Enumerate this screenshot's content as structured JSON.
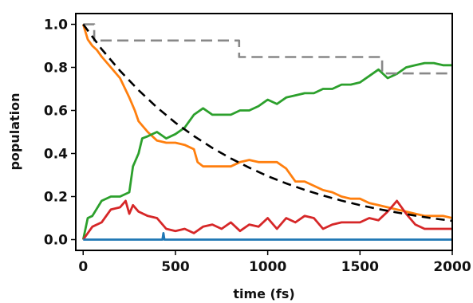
{
  "chart_data": {
    "type": "line",
    "xlabel": "time (fs)",
    "ylabel": "population",
    "xlim": [
      -40,
      2000
    ],
    "ylim": [
      -0.05,
      1.05
    ],
    "xticks": [
      0,
      500,
      1000,
      1500,
      2000
    ],
    "xtick_labels": [
      "0",
      "500",
      "1000",
      "1500",
      "2000"
    ],
    "yticks": [
      0.0,
      0.2,
      0.4,
      0.6,
      0.8,
      1.0
    ],
    "ytick_labels": [
      "0.0",
      "0.2",
      "0.4",
      "0.6",
      "0.8",
      "1.0"
    ],
    "grid": false,
    "legend": false,
    "series": [
      {
        "color": "#ff7f0e",
        "style": "solid",
        "kind": "line",
        "x": [
          0,
          25,
          50,
          75,
          100,
          150,
          200,
          250,
          280,
          300,
          350,
          400,
          450,
          500,
          550,
          600,
          620,
          650,
          700,
          800,
          850,
          900,
          950,
          1000,
          1050,
          1100,
          1150,
          1200,
          1250,
          1300,
          1350,
          1400,
          1450,
          1500,
          1550,
          1600,
          1650,
          1700,
          1750,
          1800,
          1850,
          1900,
          1950,
          2000
        ],
        "y": [
          1.0,
          0.93,
          0.9,
          0.88,
          0.85,
          0.8,
          0.75,
          0.66,
          0.6,
          0.55,
          0.5,
          0.46,
          0.45,
          0.45,
          0.44,
          0.42,
          0.36,
          0.34,
          0.34,
          0.34,
          0.36,
          0.37,
          0.36,
          0.36,
          0.36,
          0.33,
          0.27,
          0.27,
          0.25,
          0.23,
          0.22,
          0.2,
          0.19,
          0.19,
          0.17,
          0.16,
          0.15,
          0.14,
          0.13,
          0.12,
          0.11,
          0.11,
          0.11,
          0.1
        ]
      },
      {
        "color": "#2ca02c",
        "style": "solid",
        "kind": "line",
        "x": [
          0,
          25,
          50,
          100,
          150,
          200,
          250,
          270,
          300,
          320,
          350,
          400,
          450,
          500,
          550,
          600,
          650,
          700,
          800,
          850,
          900,
          950,
          1000,
          1050,
          1100,
          1150,
          1200,
          1250,
          1300,
          1350,
          1400,
          1450,
          1500,
          1550,
          1600,
          1650,
          1700,
          1750,
          1800,
          1850,
          1900,
          1950,
          2000
        ],
        "y": [
          0.0,
          0.1,
          0.11,
          0.18,
          0.2,
          0.2,
          0.22,
          0.34,
          0.4,
          0.47,
          0.48,
          0.5,
          0.47,
          0.49,
          0.52,
          0.58,
          0.61,
          0.58,
          0.58,
          0.6,
          0.6,
          0.62,
          0.65,
          0.63,
          0.66,
          0.67,
          0.68,
          0.68,
          0.7,
          0.7,
          0.72,
          0.72,
          0.73,
          0.76,
          0.79,
          0.75,
          0.77,
          0.8,
          0.81,
          0.82,
          0.82,
          0.81,
          0.81
        ]
      },
      {
        "color": "#d62728",
        "style": "solid",
        "kind": "line",
        "x": [
          0,
          50,
          100,
          150,
          200,
          230,
          250,
          270,
          300,
          350,
          400,
          450,
          500,
          550,
          600,
          650,
          700,
          750,
          800,
          850,
          900,
          950,
          1000,
          1050,
          1100,
          1150,
          1200,
          1250,
          1300,
          1350,
          1400,
          1450,
          1500,
          1550,
          1600,
          1650,
          1700,
          1750,
          1800,
          1850,
          1900,
          1950,
          2000
        ],
        "y": [
          0.0,
          0.06,
          0.08,
          0.14,
          0.15,
          0.18,
          0.12,
          0.16,
          0.13,
          0.11,
          0.1,
          0.05,
          0.04,
          0.05,
          0.03,
          0.06,
          0.07,
          0.05,
          0.08,
          0.04,
          0.07,
          0.06,
          0.1,
          0.05,
          0.1,
          0.08,
          0.11,
          0.1,
          0.05,
          0.07,
          0.08,
          0.08,
          0.08,
          0.1,
          0.09,
          0.13,
          0.18,
          0.12,
          0.07,
          0.05,
          0.05,
          0.05,
          0.05
        ]
      },
      {
        "color": "#1f77b4",
        "style": "solid",
        "kind": "line",
        "x": [
          0,
          430,
          435,
          440,
          450,
          2000
        ],
        "y": [
          0.0,
          0.0,
          0.03,
          0.0,
          0.0,
          0.0
        ]
      },
      {
        "color": "#888888",
        "style": "dashed",
        "kind": "step",
        "x": [
          0,
          60,
          60,
          845,
          845,
          1620,
          1620,
          2000
        ],
        "y": [
          1.0,
          1.0,
          0.925,
          0.925,
          0.848,
          0.848,
          0.772,
          0.772
        ]
      },
      {
        "color": "#000000",
        "style": "dashed",
        "kind": "curve",
        "function": "exp(-t/820)",
        "x": [
          0,
          100,
          200,
          300,
          400,
          500,
          600,
          700,
          800,
          900,
          1000,
          1100,
          1200,
          1300,
          1400,
          1500,
          1600,
          1700,
          1800,
          1900,
          2000
        ],
        "y": [
          1.0,
          0.885,
          0.784,
          0.694,
          0.614,
          0.543,
          0.481,
          0.426,
          0.377,
          0.334,
          0.295,
          0.261,
          0.231,
          0.205,
          0.181,
          0.16,
          0.142,
          0.126,
          0.111,
          0.098,
          0.087
        ]
      }
    ]
  }
}
